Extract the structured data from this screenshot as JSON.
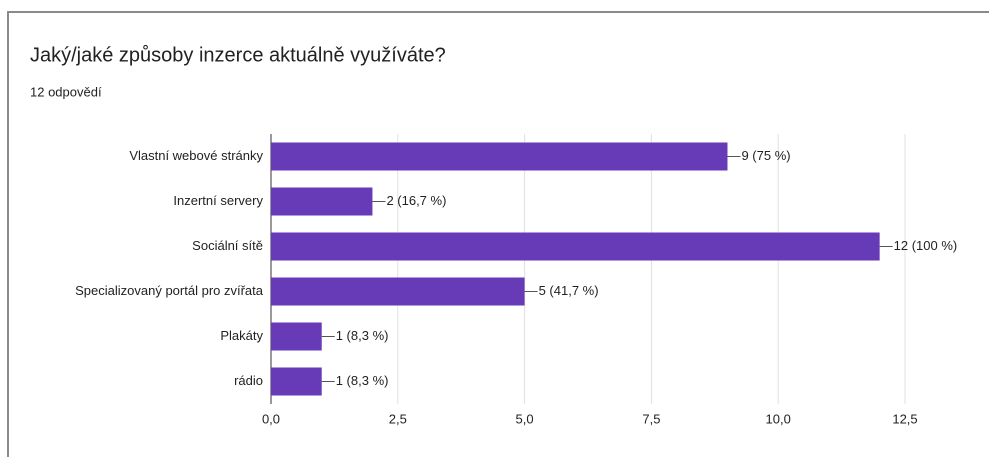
{
  "chart_data": {
    "type": "bar",
    "orientation": "horizontal",
    "title": "Jaký/jaké způsoby inzerce aktuálně využíváte?",
    "subtitle": "12 odpovědí",
    "categories": [
      "Vlastní webové stránky",
      "Inzertní servery",
      "Sociální sítě",
      "Specializovaný portál pro zvířata",
      "Plakáty",
      "rádio"
    ],
    "values": [
      9,
      2,
      12,
      5,
      1,
      1
    ],
    "value_labels": [
      "9 (75 %)",
      "2 (16,7 %)",
      "12 (100 %)",
      "5 (41,7 %)",
      "1 (8,3 %)",
      "1 (8,3 %)"
    ],
    "color": "#673ab7",
    "xlim": [
      0,
      12.5
    ],
    "xticks": [
      {
        "value": 0,
        "label": "0,0"
      },
      {
        "value": 2.5,
        "label": "2,5"
      },
      {
        "value": 5,
        "label": "5,0"
      },
      {
        "value": 7.5,
        "label": "7,5"
      },
      {
        "value": 10,
        "label": "10,0"
      },
      {
        "value": 12.5,
        "label": "12,5"
      }
    ],
    "grid": true
  }
}
